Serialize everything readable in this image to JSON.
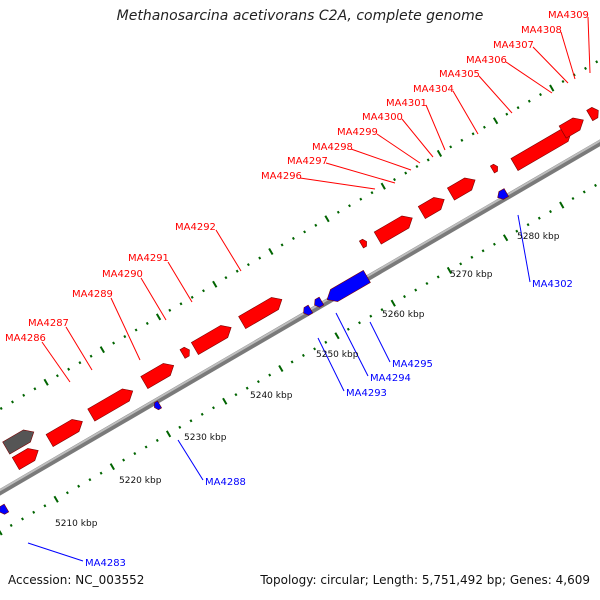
{
  "title": "Methanosarcina acetivorans C2A, complete genome",
  "footer": {
    "accession": "Accession: NC_003552",
    "topology": "Topology: circular; Length: 5,751,492 bp; Genes: 4,609"
  },
  "colors": {
    "forward": "#ff0000",
    "reverse": "#0000ff",
    "other": "#555555",
    "backbone": "#999999",
    "ticks": "#006400"
  },
  "kbp_labels": [
    "5210 kbp",
    "5220 kbp",
    "5230 kbp",
    "5240 kbp",
    "5250 kbp",
    "5260 kbp",
    "5270 kbp",
    "5280 kbp"
  ],
  "forward_genes": [
    "MA4286",
    "MA4287",
    "MA4289",
    "MA4290",
    "MA4291",
    "MA4292",
    "MA4296",
    "MA4297",
    "MA4298",
    "MA4299",
    "MA4300",
    "MA4301",
    "MA4304",
    "MA4305",
    "MA4306",
    "MA4307",
    "MA4308",
    "MA4309"
  ],
  "reverse_genes": [
    "MA4283",
    "MA4288",
    "MA4293",
    "MA4294",
    "MA4295",
    "MA4302"
  ]
}
